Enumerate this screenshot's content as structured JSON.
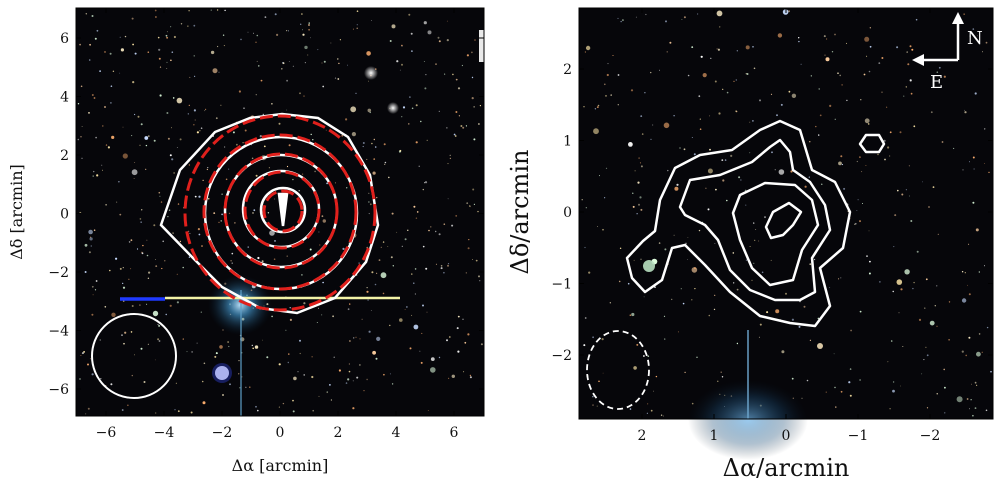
{
  "left_panel": {
    "x_label": "Δα [arcmin]",
    "y_label": "Δδ [arcmin]",
    "x_ticks": [
      "−6",
      "−4",
      "−2",
      "0",
      "2",
      "4",
      "6"
    ],
    "y_ticks": [
      "6",
      "4",
      "2",
      "0",
      "−2",
      "−4",
      "−6"
    ]
  },
  "right_panel": {
    "x_label": "Δα/arcmin",
    "y_label": "Δδ/arcmin",
    "x_ticks": [
      "2",
      "1",
      "0",
      "−1",
      "−2"
    ],
    "y_ticks": [
      "2",
      "1",
      "0",
      "−1",
      "−2"
    ],
    "compass": {
      "north": "N",
      "east": "E"
    }
  },
  "colors": {
    "sky": "#06060a",
    "contour_white": "#ffffff",
    "contour_red_dashed": "#e0201c",
    "beam": "#ffffff"
  }
}
